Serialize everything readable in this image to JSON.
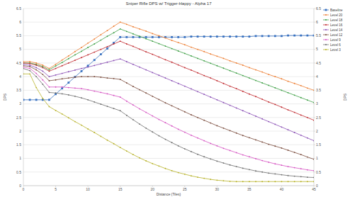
{
  "chart_data": {
    "type": "line",
    "title": "Sniper Rifle DPS w/ Trigger-Happy - Alpha 17",
    "x_label": "Distance (Tiles)",
    "y_label": "DPS",
    "y2_label": "DPS",
    "x": [
      0,
      1,
      2,
      3,
      4,
      5,
      6,
      7,
      8,
      9,
      10,
      11,
      12,
      13,
      14,
      15,
      16,
      17,
      18,
      19,
      20,
      21,
      22,
      23,
      24,
      25,
      26,
      27,
      28,
      29,
      30,
      31,
      32,
      33,
      34,
      35,
      36,
      37,
      38,
      39,
      40,
      41,
      42,
      43,
      44,
      45
    ],
    "xlim": [
      0,
      45
    ],
    "xticks": [
      0,
      5,
      10,
      15,
      20,
      25,
      30,
      35,
      40,
      45
    ],
    "ylim": [
      0,
      6.5
    ],
    "yticks": [
      0,
      0.5,
      1,
      1.5,
      2,
      2.5,
      3,
      3.5,
      4,
      4.5,
      5,
      5.5,
      6,
      6.5
    ],
    "y2lim": [
      0,
      6.5
    ],
    "y2ticks": [
      0,
      0.5,
      1,
      1.5,
      2,
      2.5,
      3,
      3.5,
      4,
      4.5,
      5,
      5.5,
      6,
      6.5
    ],
    "grid": true,
    "legend": "right",
    "series": [
      {
        "name": "Baseline",
        "color": "#3a72c0",
        "marker": "square",
        "values": [
          3.15,
          3.15,
          3.15,
          3.15,
          3.15,
          3.36,
          3.57,
          3.78,
          3.99,
          4.2,
          4.4,
          4.61,
          4.82,
          5.03,
          5.24,
          5.45,
          5.45,
          5.45,
          5.45,
          5.45,
          5.45,
          5.45,
          5.45,
          5.45,
          5.45,
          5.45,
          5.47,
          5.47,
          5.47,
          5.47,
          5.47,
          5.47,
          5.47,
          5.47,
          5.47,
          5.47,
          5.49,
          5.49,
          5.49,
          5.49,
          5.49,
          5.51,
          5.51,
          5.51,
          5.51,
          5.51
        ]
      },
      {
        "name": "Level 20",
        "color": "#ed7d31",
        "marker": "circle",
        "values": [
          4.55,
          4.55,
          4.5,
          4.42,
          4.3,
          4.45,
          4.61,
          4.76,
          4.92,
          5.07,
          5.23,
          5.38,
          5.54,
          5.69,
          5.85,
          6.0,
          5.92,
          5.83,
          5.75,
          5.67,
          5.58,
          5.5,
          5.42,
          5.33,
          5.25,
          5.17,
          5.08,
          5.0,
          4.92,
          4.83,
          4.75,
          4.67,
          4.58,
          4.5,
          4.42,
          4.33,
          4.25,
          4.17,
          4.08,
          4.0,
          3.92,
          3.83,
          3.75,
          3.67,
          3.58,
          3.5
        ]
      },
      {
        "name": "Level 18",
        "color": "#3e9f45",
        "marker": "circle",
        "values": [
          4.5,
          4.5,
          4.45,
          4.37,
          4.25,
          4.39,
          4.52,
          4.66,
          4.8,
          4.93,
          5.07,
          5.2,
          5.34,
          5.48,
          5.61,
          5.75,
          5.66,
          5.57,
          5.48,
          5.39,
          5.3,
          5.21,
          5.12,
          5.03,
          4.94,
          4.85,
          4.76,
          4.67,
          4.58,
          4.49,
          4.4,
          4.31,
          4.22,
          4.13,
          4.04,
          3.95,
          3.86,
          3.77,
          3.68,
          3.59,
          3.5,
          3.41,
          3.32,
          3.23,
          3.14,
          3.05
        ]
      },
      {
        "name": "Level 16",
        "color": "#c0282d",
        "marker": "circle",
        "values": [
          4.5,
          4.48,
          4.42,
          4.33,
          4.2,
          4.3,
          4.4,
          4.5,
          4.6,
          4.7,
          4.8,
          4.9,
          5.0,
          5.1,
          5.2,
          5.3,
          5.2,
          5.11,
          5.01,
          4.91,
          4.82,
          4.72,
          4.62,
          4.53,
          4.43,
          4.33,
          4.24,
          4.14,
          4.04,
          3.95,
          3.85,
          3.75,
          3.65,
          3.56,
          3.46,
          3.36,
          3.27,
          3.17,
          3.07,
          2.98,
          2.88,
          2.78,
          2.69,
          2.59,
          2.5,
          2.4
        ]
      },
      {
        "name": "Level 14",
        "color": "#8a4fb5",
        "marker": "circle",
        "values": [
          4.45,
          4.42,
          4.33,
          4.2,
          4.0,
          4.06,
          4.12,
          4.18,
          4.24,
          4.3,
          4.35,
          4.41,
          4.47,
          4.53,
          4.59,
          4.65,
          4.55,
          4.45,
          4.35,
          4.25,
          4.15,
          4.05,
          3.95,
          3.85,
          3.75,
          3.65,
          3.55,
          3.45,
          3.35,
          3.25,
          3.15,
          3.05,
          2.95,
          2.85,
          2.75,
          2.65,
          2.55,
          2.45,
          2.35,
          2.25,
          2.15,
          2.05,
          1.95,
          1.85,
          1.75,
          1.65
        ]
      },
      {
        "name": "Level 12",
        "color": "#7a4b3c",
        "marker": "circle",
        "values": [
          4.4,
          4.37,
          4.25,
          4.08,
          3.85,
          3.88,
          3.92,
          3.95,
          3.98,
          4.0,
          4.0,
          4.0,
          3.98,
          3.95,
          3.93,
          3.9,
          3.77,
          3.64,
          3.52,
          3.4,
          3.28,
          3.16,
          3.04,
          2.93,
          2.82,
          2.71,
          2.6,
          2.5,
          2.4,
          2.3,
          2.2,
          2.11,
          2.02,
          1.93,
          1.84,
          1.76,
          1.68,
          1.6,
          1.52,
          1.45,
          1.38,
          1.3,
          1.22,
          1.14,
          1.05,
          0.97
        ]
      },
      {
        "name": "Level 9",
        "color": "#d553c2",
        "marker": "circle",
        "values": [
          4.35,
          4.3,
          4.12,
          3.88,
          3.62,
          3.62,
          3.62,
          3.6,
          3.58,
          3.56,
          3.52,
          3.47,
          3.42,
          3.37,
          3.31,
          3.25,
          3.1,
          2.96,
          2.82,
          2.69,
          2.56,
          2.43,
          2.31,
          2.19,
          2.07,
          1.96,
          1.85,
          1.75,
          1.65,
          1.55,
          1.46,
          1.37,
          1.29,
          1.21,
          1.13,
          1.06,
          0.99,
          0.92,
          0.86,
          0.8,
          0.75,
          0.7,
          0.66,
          0.62,
          0.58,
          0.55
        ]
      },
      {
        "name": "Level 6",
        "color": "#6e6e6e",
        "marker": "circle",
        "values": [
          4.3,
          4.22,
          4.0,
          3.72,
          3.42,
          3.4,
          3.37,
          3.33,
          3.28,
          3.22,
          3.15,
          3.07,
          2.99,
          2.91,
          2.83,
          2.75,
          2.58,
          2.42,
          2.26,
          2.11,
          1.97,
          1.83,
          1.7,
          1.58,
          1.46,
          1.35,
          1.25,
          1.15,
          1.06,
          0.98,
          0.9,
          0.83,
          0.76,
          0.7,
          0.64,
          0.59,
          0.54,
          0.5,
          0.46,
          0.43,
          0.4,
          0.37,
          0.35,
          0.33,
          0.31,
          0.3
        ]
      },
      {
        "name": "Level 3",
        "color": "#b8b22a",
        "marker": "circle",
        "values": [
          4.1,
          4.1,
          3.6,
          3.2,
          2.9,
          2.76,
          2.63,
          2.49,
          2.35,
          2.22,
          2.08,
          1.95,
          1.81,
          1.67,
          1.54,
          1.4,
          1.27,
          1.14,
          1.02,
          0.91,
          0.81,
          0.72,
          0.63,
          0.55,
          0.48,
          0.42,
          0.36,
          0.31,
          0.27,
          0.23,
          0.2,
          0.18,
          0.16,
          0.15,
          0.15,
          0.15,
          0.15,
          0.15,
          0.15,
          0.15,
          0.15,
          0.15,
          0.15,
          0.15,
          0.15,
          0.15
        ]
      }
    ]
  }
}
